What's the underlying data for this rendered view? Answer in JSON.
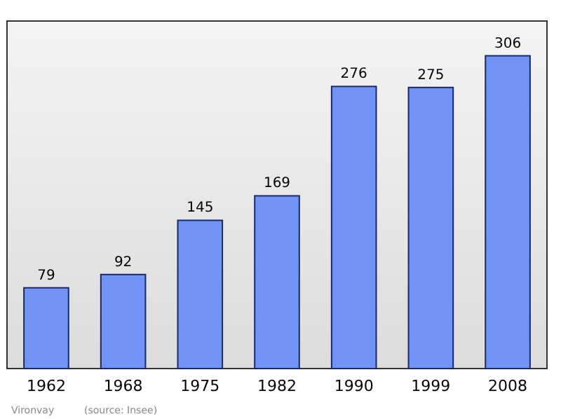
{
  "chart_data": {
    "type": "bar",
    "categories": [
      "1962",
      "1968",
      "1975",
      "1982",
      "1990",
      "1999",
      "2008"
    ],
    "values": [
      79,
      92,
      145,
      169,
      276,
      275,
      306
    ],
    "color": "#7093f5",
    "data_labels": true,
    "annotations": [
      "Vironvay",
      "(source: Insee)"
    ]
  }
}
